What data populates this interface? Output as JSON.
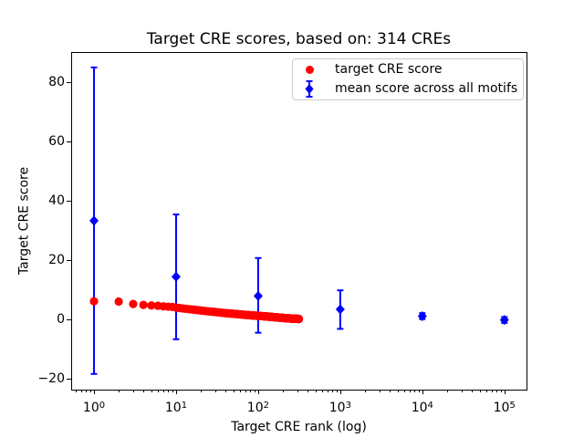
{
  "figure": {
    "title": "Target CRE scores, based on: 314 CREs",
    "xlabel": "Target CRE rank (log)",
    "ylabel": "Target CRE score"
  },
  "legend": {
    "position": "upper right",
    "items": [
      {
        "label": "target CRE score",
        "marker": "circle",
        "color": "#ff0000"
      },
      {
        "label": "mean score across all motifs",
        "marker": "diamond-with-errorbar",
        "color": "#0000ff"
      }
    ]
  },
  "chart_data": {
    "type": "scatter",
    "title": "Target CRE scores, based on: 314 CREs",
    "xlabel": "Target CRE rank (log)",
    "ylabel": "Target CRE score",
    "x_scale": "log",
    "grid": false,
    "xlim": [
      0.527,
      186000
    ],
    "ylim": [
      -23.7,
      90.2
    ],
    "xticks": [
      {
        "value": 1,
        "exponent": 0
      },
      {
        "value": 10,
        "exponent": 1
      },
      {
        "value": 100,
        "exponent": 2
      },
      {
        "value": 1000,
        "exponent": 3
      },
      {
        "value": 10000,
        "exponent": 4
      },
      {
        "value": 100000,
        "exponent": 5
      }
    ],
    "yticks": [
      {
        "value": -20,
        "label": "−20"
      },
      {
        "value": 0,
        "label": "0"
      },
      {
        "value": 20,
        "label": "20"
      },
      {
        "value": 40,
        "label": "40"
      },
      {
        "value": 60,
        "label": "60"
      },
      {
        "value": 80,
        "label": "80"
      }
    ],
    "series": [
      {
        "name": "mean score across all motifs",
        "marker": "diamond",
        "color": "#0000ff",
        "errorbars": true,
        "points": [
          {
            "x": 1,
            "mean": 33.3,
            "upper": 85.0,
            "lower": -18.4
          },
          {
            "x": 10,
            "mean": 14.4,
            "upper": 35.4,
            "lower": -6.7
          },
          {
            "x": 100,
            "mean": 7.9,
            "upper": 20.7,
            "lower": -4.5
          },
          {
            "x": 1000,
            "mean": 3.4,
            "upper": 9.8,
            "lower": -3.2
          },
          {
            "x": 10000,
            "mean": 1.1,
            "upper": 2.1,
            "lower": 0.1
          },
          {
            "x": 100000,
            "mean": -0.2,
            "upper": 0.8,
            "lower": -1.2
          }
        ]
      },
      {
        "name": "target CRE score",
        "marker": "circle",
        "color": "#ff0000",
        "total_points": 314,
        "note": "dense monotonically decreasing band of 314 ranked scores; anchor points below, intermediate integer ranks interpolated in log-rank space",
        "anchors": [
          [
            1,
            6.1
          ],
          [
            2,
            6.0
          ],
          [
            3,
            5.2
          ],
          [
            4,
            4.9
          ],
          [
            5,
            4.7
          ],
          [
            6,
            4.6
          ],
          [
            7,
            4.4
          ],
          [
            8,
            4.3
          ],
          [
            9,
            4.2
          ],
          [
            10,
            4.0
          ],
          [
            12,
            3.7
          ],
          [
            15,
            3.4
          ],
          [
            20,
            3.0
          ],
          [
            25,
            2.7
          ],
          [
            30,
            2.5
          ],
          [
            40,
            2.1
          ],
          [
            50,
            1.9
          ],
          [
            65,
            1.6
          ],
          [
            80,
            1.4
          ],
          [
            100,
            1.2
          ],
          [
            125,
            1.0
          ],
          [
            150,
            0.8
          ],
          [
            200,
            0.5
          ],
          [
            250,
            0.3
          ],
          [
            314,
            0.15
          ]
        ]
      }
    ]
  }
}
